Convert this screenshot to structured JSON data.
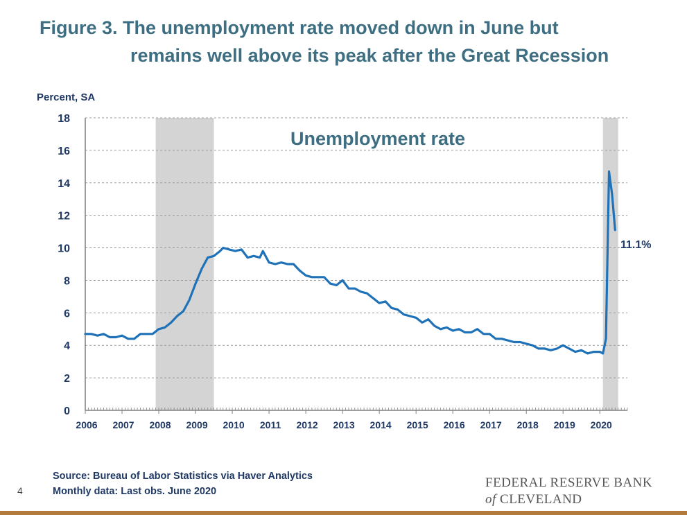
{
  "title": {
    "line1": "Figure 3. The unemployment rate moved down in June but",
    "line2": "remains well above its peak after the Great Recession"
  },
  "footer": {
    "source": "Source: Bureau of Labor Statistics via Haver Analytics",
    "note": "Monthly data: Last obs. June 2020",
    "page_number": "4"
  },
  "logo": {
    "line1": "FEDERAL RESERVE BANK",
    "of": "of",
    "line2": "CLEVELAND"
  },
  "colors": {
    "title": "#3e6e82",
    "series": "#1f72b8",
    "recession": "#d4d4d4",
    "axis_text": "#1f3864",
    "rule": "#b47a3c"
  },
  "chart_data": {
    "type": "line",
    "title": "Unemployment rate",
    "ylabel": "Percent, SA",
    "xlabel": "",
    "ylim": [
      0,
      18
    ],
    "xlim": [
      2006.0,
      2020.75
    ],
    "yticks": [
      0,
      2,
      4,
      6,
      8,
      10,
      12,
      14,
      16,
      18
    ],
    "xticks": [
      "2006",
      "2007",
      "2008",
      "2009",
      "2010",
      "2011",
      "2012",
      "2013",
      "2014",
      "2015",
      "2016",
      "2017",
      "2018",
      "2019",
      "2020"
    ],
    "grid": "horizontal dashed",
    "recessions": [
      {
        "start": "2007-12",
        "end": "2009-06"
      },
      {
        "start": "2020-02",
        "end": "2020-06"
      }
    ],
    "annotation": "11.1%",
    "series": [
      {
        "values": [
          [
            "2006-01",
            4.7
          ],
          [
            "2006-03",
            4.7
          ],
          [
            "2006-05",
            4.6
          ],
          [
            "2006-07",
            4.7
          ],
          [
            "2006-09",
            4.5
          ],
          [
            "2006-11",
            4.5
          ],
          [
            "2007-01",
            4.6
          ],
          [
            "2007-03",
            4.4
          ],
          [
            "2007-05",
            4.4
          ],
          [
            "2007-07",
            4.7
          ],
          [
            "2007-09",
            4.7
          ],
          [
            "2007-11",
            4.7
          ],
          [
            "2008-01",
            5.0
          ],
          [
            "2008-03",
            5.1
          ],
          [
            "2008-05",
            5.4
          ],
          [
            "2008-07",
            5.8
          ],
          [
            "2008-09",
            6.1
          ],
          [
            "2008-11",
            6.8
          ],
          [
            "2009-01",
            7.8
          ],
          [
            "2009-03",
            8.7
          ],
          [
            "2009-05",
            9.4
          ],
          [
            "2009-07",
            9.5
          ],
          [
            "2009-09",
            9.8
          ],
          [
            "2009-10",
            10.0
          ],
          [
            "2009-12",
            9.9
          ],
          [
            "2010-02",
            9.8
          ],
          [
            "2010-04",
            9.9
          ],
          [
            "2010-06",
            9.4
          ],
          [
            "2010-08",
            9.5
          ],
          [
            "2010-10",
            9.4
          ],
          [
            "2010-11",
            9.8
          ],
          [
            "2011-01",
            9.1
          ],
          [
            "2011-03",
            9.0
          ],
          [
            "2011-05",
            9.1
          ],
          [
            "2011-07",
            9.0
          ],
          [
            "2011-09",
            9.0
          ],
          [
            "2011-11",
            8.6
          ],
          [
            "2012-01",
            8.3
          ],
          [
            "2012-03",
            8.2
          ],
          [
            "2012-05",
            8.2
          ],
          [
            "2012-07",
            8.2
          ],
          [
            "2012-09",
            7.8
          ],
          [
            "2012-11",
            7.7
          ],
          [
            "2013-01",
            8.0
          ],
          [
            "2013-03",
            7.5
          ],
          [
            "2013-05",
            7.5
          ],
          [
            "2013-07",
            7.3
          ],
          [
            "2013-09",
            7.2
          ],
          [
            "2013-11",
            6.9
          ],
          [
            "2014-01",
            6.6
          ],
          [
            "2014-03",
            6.7
          ],
          [
            "2014-05",
            6.3
          ],
          [
            "2014-07",
            6.2
          ],
          [
            "2014-09",
            5.9
          ],
          [
            "2014-11",
            5.8
          ],
          [
            "2015-01",
            5.7
          ],
          [
            "2015-03",
            5.4
          ],
          [
            "2015-05",
            5.6
          ],
          [
            "2015-07",
            5.2
          ],
          [
            "2015-09",
            5.0
          ],
          [
            "2015-11",
            5.1
          ],
          [
            "2016-01",
            4.9
          ],
          [
            "2016-03",
            5.0
          ],
          [
            "2016-05",
            4.8
          ],
          [
            "2016-07",
            4.8
          ],
          [
            "2016-09",
            5.0
          ],
          [
            "2016-11",
            4.7
          ],
          [
            "2017-01",
            4.7
          ],
          [
            "2017-03",
            4.4
          ],
          [
            "2017-05",
            4.4
          ],
          [
            "2017-07",
            4.3
          ],
          [
            "2017-09",
            4.2
          ],
          [
            "2017-11",
            4.2
          ],
          [
            "2018-01",
            4.1
          ],
          [
            "2018-03",
            4.0
          ],
          [
            "2018-05",
            3.8
          ],
          [
            "2018-07",
            3.8
          ],
          [
            "2018-09",
            3.7
          ],
          [
            "2018-11",
            3.8
          ],
          [
            "2019-01",
            4.0
          ],
          [
            "2019-03",
            3.8
          ],
          [
            "2019-05",
            3.6
          ],
          [
            "2019-07",
            3.7
          ],
          [
            "2019-09",
            3.5
          ],
          [
            "2019-11",
            3.6
          ],
          [
            "2020-01",
            3.6
          ],
          [
            "2020-02",
            3.5
          ],
          [
            "2020-03",
            4.4
          ],
          [
            "2020-04",
            14.7
          ],
          [
            "2020-05",
            13.3
          ],
          [
            "2020-06",
            11.1
          ]
        ]
      }
    ]
  }
}
